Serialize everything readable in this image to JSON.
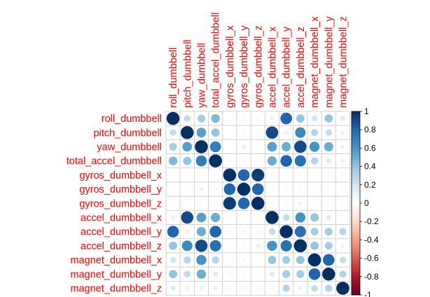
{
  "chart_data": {
    "type": "heatmap",
    "subtype": "correlation-circles",
    "method": "circle",
    "title": "",
    "layout": "full matrix, labels on left and top (rotated)",
    "grid": true,
    "variables": [
      "roll_dumbbell",
      "pitch_dumbbell",
      "yaw_dumbbell",
      "total_accel_dumbbell",
      "gyros_dumbbell_x",
      "gyros_dumbbell_y",
      "gyros_dumbbell_z",
      "accel_dumbbell_x",
      "accel_dumbbell_y",
      "accel_dumbbell_z",
      "magnet_dumbbell_x",
      "magnet_dumbbell_y",
      "magnet_dumbbell_z"
    ],
    "matrix": [
      [
        1.0,
        0.25,
        0.35,
        0.45,
        0.0,
        0.05,
        0.05,
        0.1,
        0.8,
        0.4,
        0.2,
        0.4,
        0.15
      ],
      [
        0.25,
        1.0,
        0.55,
        0.4,
        0.0,
        0.05,
        0.05,
        0.9,
        0.1,
        0.65,
        0.3,
        0.25,
        0.1
      ],
      [
        0.35,
        0.55,
        1.0,
        0.7,
        0.0,
        0.1,
        0.05,
        0.55,
        0.5,
        0.9,
        0.6,
        0.5,
        0.1
      ],
      [
        0.45,
        0.4,
        0.7,
        1.0,
        0.05,
        0.05,
        0.05,
        0.5,
        0.8,
        0.75,
        0.3,
        0.15,
        0.1
      ],
      [
        0.0,
        0.0,
        0.0,
        0.05,
        1.0,
        0.8,
        0.95,
        0.05,
        0.05,
        0.05,
        0.05,
        0.05,
        0.05
      ],
      [
        0.05,
        0.05,
        0.1,
        0.05,
        0.8,
        1.0,
        0.8,
        0.05,
        0.05,
        0.05,
        0.05,
        0.05,
        0.05
      ],
      [
        0.05,
        0.05,
        0.05,
        0.05,
        0.95,
        0.8,
        1.0,
        0.05,
        0.05,
        0.1,
        0.05,
        0.05,
        0.05
      ],
      [
        0.1,
        0.9,
        0.55,
        0.5,
        0.05,
        0.05,
        0.05,
        1.0,
        0.25,
        0.6,
        0.4,
        0.15,
        0.05
      ],
      [
        0.8,
        0.1,
        0.5,
        0.8,
        0.05,
        0.05,
        0.05,
        0.25,
        1.0,
        0.75,
        0.35,
        0.35,
        0.3
      ],
      [
        0.4,
        0.65,
        0.9,
        0.75,
        0.05,
        0.05,
        0.1,
        0.6,
        0.75,
        1.0,
        0.4,
        0.35,
        0.1
      ],
      [
        0.2,
        0.3,
        0.6,
        0.3,
        0.05,
        0.05,
        0.05,
        0.4,
        0.35,
        0.4,
        1.0,
        0.8,
        0.25
      ],
      [
        0.4,
        0.25,
        0.5,
        0.15,
        0.05,
        0.05,
        0.05,
        0.15,
        0.35,
        0.35,
        0.8,
        1.0,
        0.3
      ],
      [
        0.15,
        0.1,
        0.1,
        0.1,
        0.05,
        0.05,
        0.05,
        0.05,
        0.3,
        0.1,
        0.25,
        0.3,
        1.0
      ]
    ],
    "colorbar": {
      "range": [
        -1,
        1
      ],
      "ticks": [
        "1",
        "0.8",
        "0.6",
        "0.4",
        "0.2",
        "0",
        "-0.2",
        "-0.4",
        "-0.6",
        "-0.8",
        "-1"
      ],
      "palette": [
        "#67001F",
        "#B2182B",
        "#D6604D",
        "#F4A582",
        "#FDDBC7",
        "#FFFFFF",
        "#D1E5F0",
        "#92C5DE",
        "#4393C3",
        "#2166AC",
        "#053061"
      ]
    },
    "label_color": "#FF0000",
    "grid_color": "#CCCCCC"
  }
}
